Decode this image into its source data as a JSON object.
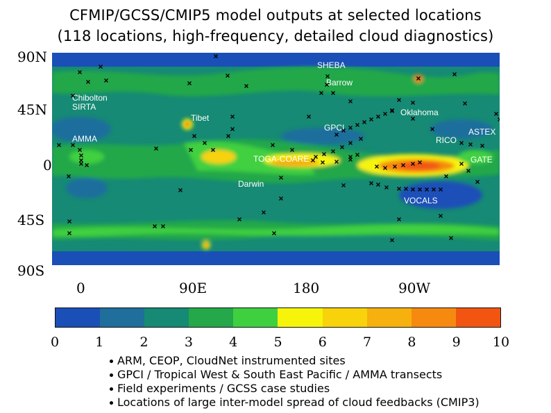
{
  "title": {
    "line1": "CFMIP/GCSS/CMIP5 model outputs at selected locations",
    "line2": "(118 locations, high-frequency, detailed cloud diagnostics)"
  },
  "axes": {
    "lat_labels": [
      "90N",
      "45N",
      "0",
      "45S",
      "90S"
    ],
    "lon_labels": [
      "0",
      "90E",
      "180",
      "90W"
    ]
  },
  "sites": [
    {
      "name": "SHEBA"
    },
    {
      "name": "Barrow"
    },
    {
      "name": "Chibolton"
    },
    {
      "name": "SIRTA"
    },
    {
      "name": "Tibet"
    },
    {
      "name": "Oklahoma"
    },
    {
      "name": "GPCI"
    },
    {
      "name": "ASTEX"
    },
    {
      "name": "AMMA"
    },
    {
      "name": "RICO"
    },
    {
      "name": "TOGA-COARE"
    },
    {
      "name": "GATE"
    },
    {
      "name": "Darwin"
    },
    {
      "name": "VOCALS"
    }
  ],
  "colorbar": {
    "ticks": [
      "0",
      "1",
      "2",
      "3",
      "4",
      "5",
      "6",
      "7",
      "8",
      "9",
      "10"
    ],
    "colors": [
      "#1a4fb8",
      "#1f6e9c",
      "#168a74",
      "#24a84a",
      "#3fd03f",
      "#f6f40a",
      "#f8d20a",
      "#f6b10e",
      "#f68a10",
      "#f25512"
    ]
  },
  "legend": [
    "ARM, CEOP, CloudNet instrumented sites",
    "GPCI / Tropical West & South East Pacific / AMMA transects",
    "Field experiments / GCSS case studies",
    "Locations of large inter-model spread of cloud feedbacks (CMIP3)"
  ]
}
